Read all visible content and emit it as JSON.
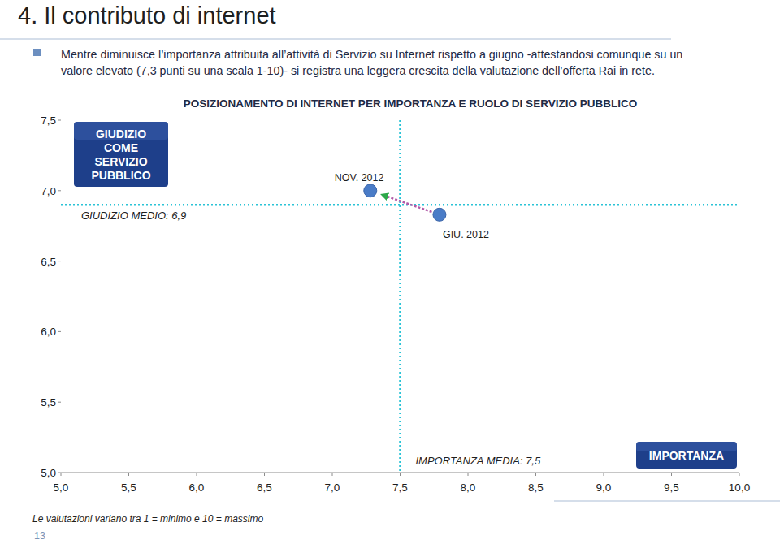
{
  "page": {
    "heading": "4. Il contributo di internet",
    "bullet": [
      "Mentre diminuisce l’importanza attribuita all’attività di Servizio su Internet rispetto a giugno -attestandosi comunque su un",
      "valore elevato (7,3 punti su una scala 1-10)- si registra una leggera crescita della valutazione dell’offerta Rai in rete."
    ],
    "footnote": "Le valutazioni variano tra 1 = minimo e 10 = massimo",
    "page_number": "13"
  },
  "chart_data": {
    "type": "scatter",
    "title": "POSIZIONAMENTO DI INTERNET PER IMPORTANZA E RUOLO DI SERVIZIO PUBBLICO",
    "x_label": "IMPORTANZA",
    "y_label": "GIUDIZIO COME SERVIZIO PUBBLICO",
    "x": [
      7.28,
      7.79
    ],
    "values": [
      7.0,
      6.83
    ],
    "point_labels": [
      "NOV. 2012",
      "GIU. 2012"
    ],
    "color": "#4a7cc7",
    "xlim": [
      5,
      10
    ],
    "xticks": [
      {
        "value": 5,
        "label": "5,0"
      },
      {
        "value": 5.5,
        "label": "5,5"
      },
      {
        "value": 6,
        "label": "6,0"
      },
      {
        "value": 6.5,
        "label": "6,5"
      },
      {
        "value": 7,
        "label": "7,0"
      },
      {
        "value": 7.5,
        "label": "7,5"
      },
      {
        "value": 8,
        "label": "8,0"
      },
      {
        "value": 8.5,
        "label": "8,5"
      },
      {
        "value": 9,
        "label": "9,0"
      },
      {
        "value": 9.5,
        "label": "9,5"
      },
      {
        "value": 10,
        "label": "10,0"
      }
    ],
    "ylim": [
      5,
      7.5
    ],
    "yticks": [
      {
        "value": 5,
        "label": "5,0"
      },
      {
        "value": 5.5,
        "label": "5,5"
      },
      {
        "value": 6,
        "label": "6,0"
      },
      {
        "value": 6.5,
        "label": "6,5"
      },
      {
        "value": 7,
        "label": "7,0"
      },
      {
        "value": 7.5,
        "label": "7,5"
      }
    ],
    "reference_lines": [
      {
        "axis": "x",
        "value": 7.5,
        "label": "IMPORTANZA MEDIA: 7,5"
      },
      {
        "axis": "y",
        "value": 6.9,
        "label": "GIUDIZIO MEDIO: 6,9"
      }
    ],
    "grid": false
  }
}
